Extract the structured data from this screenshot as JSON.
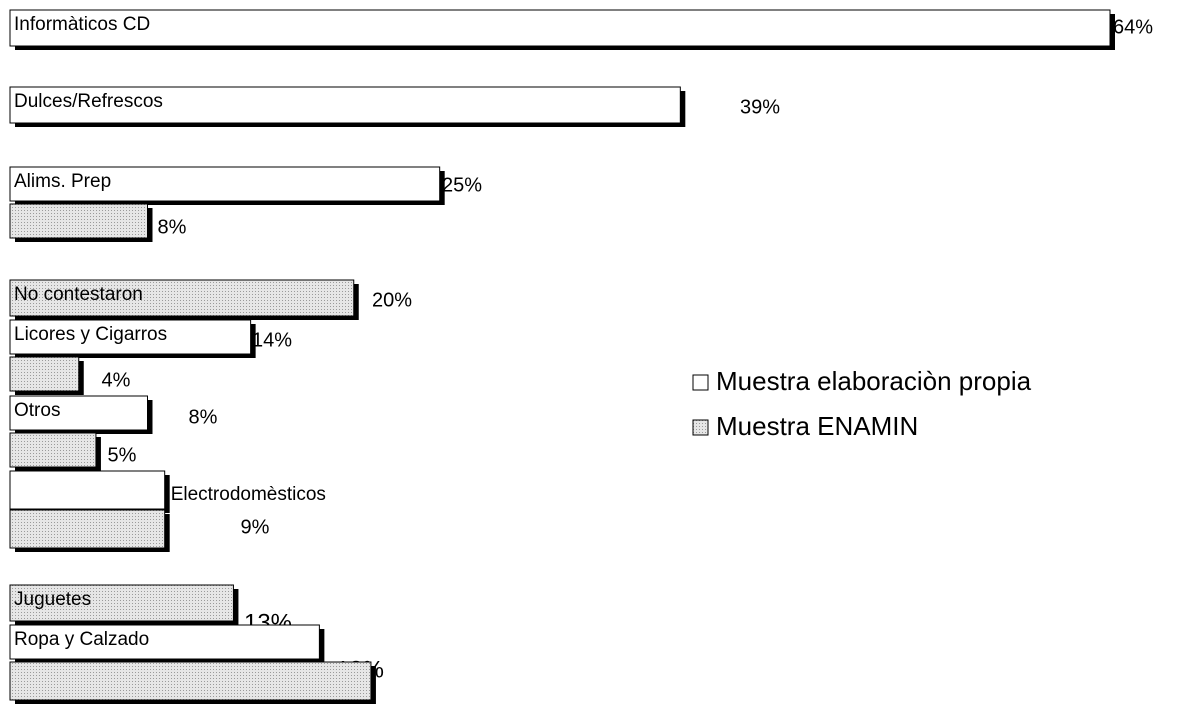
{
  "chart_data": {
    "type": "bar",
    "orientation": "horizontal",
    "xlim": [
      0,
      64
    ],
    "series": [
      {
        "name": "Muestra elaboraciòn propia",
        "color": "#ffffff"
      },
      {
        "name": "Muestra ENAMIN",
        "color": "#d4d4d4"
      }
    ],
    "bars": [
      {
        "label": "Informàticos CD",
        "series": 0,
        "value": 64,
        "value_label": "64%"
      },
      {
        "label": "Dulces/Refrescos",
        "series": 0,
        "value": 39,
        "value_label": "39%"
      },
      {
        "label": "Alims. Prep",
        "series": 0,
        "value": 25,
        "value_label": "25%"
      },
      {
        "label": null,
        "series": 1,
        "value": 8,
        "value_label": "8%"
      },
      {
        "label": "No contestaron",
        "series": 1,
        "value": 20,
        "value_label": "20%"
      },
      {
        "label": "Licores y Cigarros",
        "series": 0,
        "value": 14,
        "value_label": "14%"
      },
      {
        "label": null,
        "series": 1,
        "value": 4,
        "value_label": "4%"
      },
      {
        "label": "Otros",
        "series": 0,
        "value": 8,
        "value_label": "8%"
      },
      {
        "label": null,
        "series": 1,
        "value": 5,
        "value_label": "5%"
      },
      {
        "label": "Electrodomèsticos",
        "series": 0,
        "value": 9,
        "value_label": "9%"
      },
      {
        "label": null,
        "series": 1,
        "value": 9,
        "value_label": null
      },
      {
        "label": "Juguetes",
        "series": 1,
        "value": 13,
        "value_label": "13%"
      },
      {
        "label": "Ropa y Calzado",
        "series": 0,
        "value": 18,
        "value_label": "18%"
      },
      {
        "label": null,
        "series": 1,
        "value": 21,
        "value_label": null
      }
    ]
  }
}
